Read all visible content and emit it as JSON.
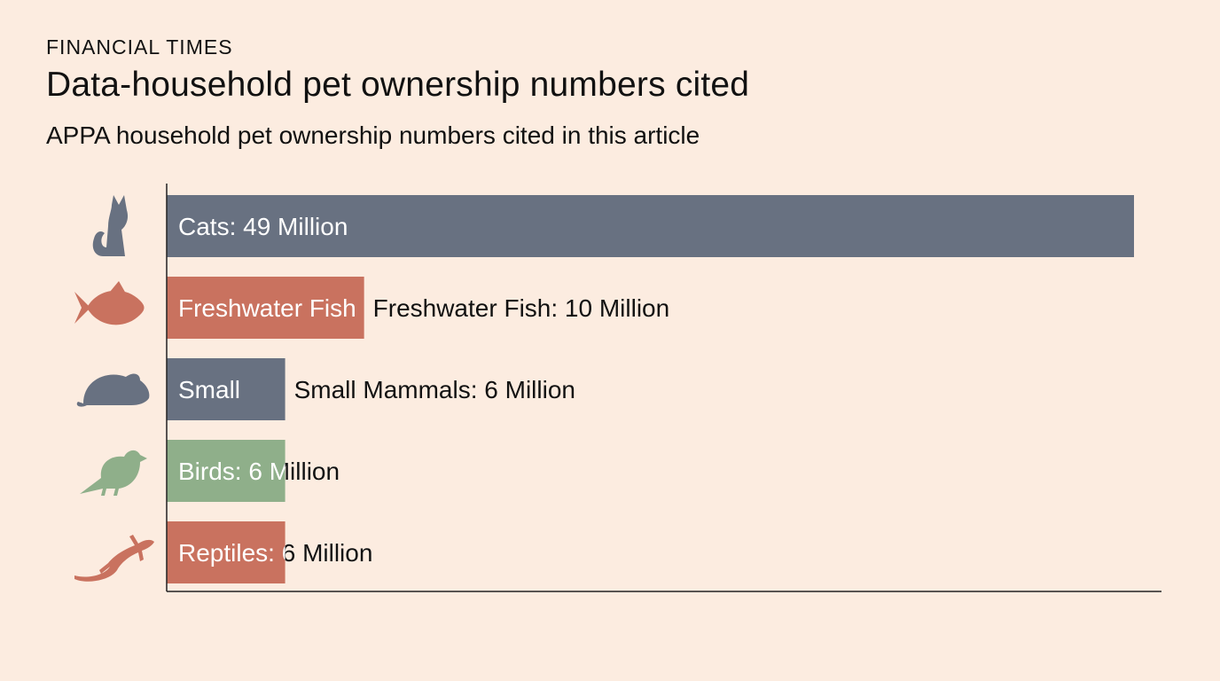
{
  "header": {
    "brand": "FINANCIAL TIMES",
    "title": "Data-household pet ownership numbers cited",
    "subtitle": "APPA household pet ownership numbers cited in this article"
  },
  "chart_data": {
    "type": "bar",
    "orientation": "horizontal",
    "unit": "Million households",
    "categories": [
      "Cats",
      "Freshwater Fish",
      "Small Mammals",
      "Birds",
      "Reptiles"
    ],
    "values": [
      49,
      10,
      6,
      6,
      6
    ],
    "bars": [
      {
        "category": "Cats",
        "value": 49,
        "color": "#687181",
        "icon": "cat-icon",
        "inside_label": "Cats: 49 Million",
        "outside_label": ""
      },
      {
        "category": "Freshwater Fish",
        "value": 10,
        "color": "#c9725f",
        "icon": "fish-icon",
        "inside_label": "Freshwater Fish",
        "outside_label": "Freshwater Fish: 10 Million"
      },
      {
        "category": "Small Mammals",
        "value": 6,
        "color": "#687181",
        "icon": "mouse-icon",
        "inside_label": "Small",
        "outside_label": "Small Mammals: 6 Million"
      },
      {
        "category": "Birds",
        "value": 6,
        "color": "#8faf8a",
        "icon": "bird-icon",
        "inside_label": "Birds: 6 Million",
        "outside_label": ""
      },
      {
        "category": "Reptiles",
        "value": 6,
        "color": "#c9725f",
        "icon": "lizard-icon",
        "inside_label": "Reptiles: 6 Million",
        "outside_label": ""
      }
    ],
    "xlim": [
      0,
      49
    ],
    "grid": false,
    "legend": "none",
    "xlabel": "",
    "ylabel": ""
  }
}
